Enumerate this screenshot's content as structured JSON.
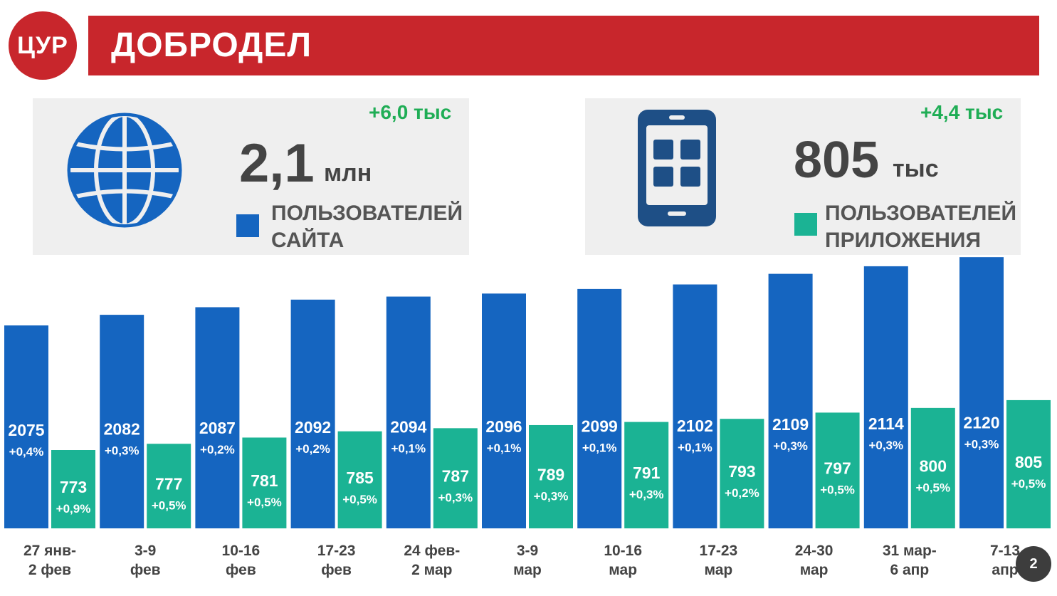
{
  "header": {
    "logo_text": "ЦУР",
    "title": "ДОБРОДЕЛ"
  },
  "cards": {
    "site": {
      "delta": "+6,0 тыс",
      "value": "2,1",
      "unit": "млн",
      "caption_line1": "ПОЛЬЗОВАТЕЛЕЙ",
      "caption_line2": "САЙТА",
      "icon": "globe-icon",
      "color": "#1565c0"
    },
    "app": {
      "delta": "+4,4 тыс",
      "value": "805",
      "unit": "тыс",
      "caption_line1": "ПОЛЬЗОВАТЕЛЕЙ",
      "caption_line2": "ПРИЛОЖЕНИЯ",
      "icon": "smartphone-icon",
      "color": "#1bb394"
    }
  },
  "colors": {
    "accent_red": "#c8262c",
    "site_blue": "#1565c0",
    "app_teal": "#1bb394",
    "delta_green": "#1fad55",
    "icon_navy": "#1e4f86"
  },
  "chart_data": {
    "type": "bar",
    "categories": [
      "27 янв-\n2 фев",
      "3-9\nфев",
      "10-16\nфев",
      "17-23\nфев",
      "24 фев-\n2 мар",
      "3-9\nмар",
      "10-16\nмар",
      "17-23\nмар",
      "24-30\nмар",
      "31 мар-\n6 апр",
      "7-13\nапр"
    ],
    "series": [
      {
        "values": [
          2075,
          2082,
          2087,
          2092,
          2094,
          2096,
          2099,
          2102,
          2109,
          2114,
          2120
        ],
        "labels": [
          "+0,4%",
          "+0,3%",
          "+0,2%",
          "+0,2%",
          "+0,1%",
          "+0,1%",
          "+0,1%",
          "+0,1%",
          "+0,3%",
          "+0,3%",
          "+0,3%"
        ],
        "color": "#1565c0"
      },
      {
        "values": [
          773,
          777,
          781,
          785,
          787,
          789,
          791,
          793,
          797,
          800,
          805
        ],
        "labels": [
          "+0,9%",
          "+0,5%",
          "+0,5%",
          "+0,5%",
          "+0,3%",
          "+0,3%",
          "+0,3%",
          "+0,2%",
          "+0,5%",
          "+0,5%",
          "+0,5%"
        ],
        "color": "#1bb394"
      }
    ]
  },
  "page_number": "2"
}
